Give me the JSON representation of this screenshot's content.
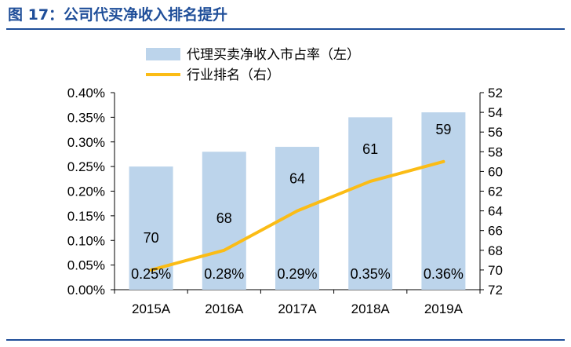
{
  "figure_title": "图 17：公司代买净收入排名提升",
  "colors": {
    "bar": "#bcd4eb",
    "line": "#fbbc15",
    "title": "#1f4e99",
    "axis": "#000000"
  },
  "chart_data": {
    "type": "bar+line",
    "categories": [
      "2015A",
      "2016A",
      "2017A",
      "2018A",
      "2019A"
    ],
    "series": [
      {
        "name": "代理买卖净收入市占率（左）",
        "type": "bar",
        "axis": "left",
        "values": [
          0.25,
          0.28,
          0.29,
          0.35,
          0.36
        ],
        "labels": [
          "0.25%",
          "0.28%",
          "0.29%",
          "0.35%",
          "0.36%"
        ]
      },
      {
        "name": "行业排名（右）",
        "type": "line",
        "axis": "right",
        "values": [
          70,
          68,
          64,
          61,
          59
        ],
        "labels": [
          "70",
          "68",
          "64",
          "61",
          "59"
        ]
      }
    ],
    "y_left": {
      "min": 0,
      "max": 0.4,
      "step": 0.05,
      "unit": "%",
      "ticks": [
        "0.00%",
        "0.05%",
        "0.10%",
        "0.15%",
        "0.20%",
        "0.25%",
        "0.30%",
        "0.35%",
        "0.40%"
      ]
    },
    "y_right": {
      "min": 52,
      "max": 72,
      "step": 2,
      "inverted": true,
      "ticks": [
        "52",
        "54",
        "56",
        "58",
        "60",
        "62",
        "64",
        "66",
        "68",
        "70",
        "72"
      ]
    },
    "legend_position": "top",
    "grid": false
  }
}
